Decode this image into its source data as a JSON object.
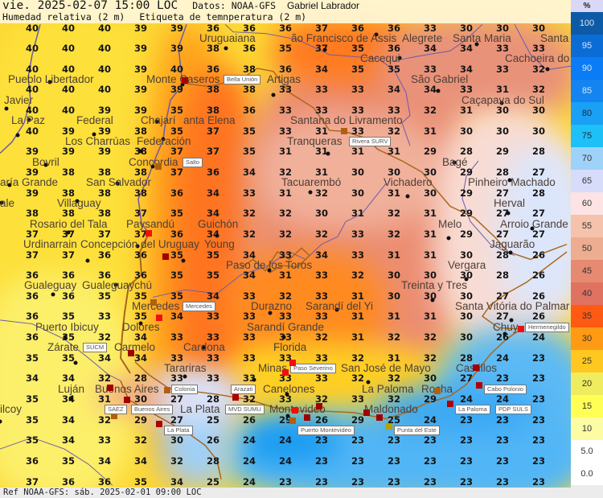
{
  "header": {
    "datetime": "vie. 2025-02-07 15:00 LOC",
    "source": "Datos: NOAA-GFS",
    "author": "Gabriel Labrador",
    "variable": "Humedad relativa (2 m)",
    "labels": "Etiqueta de temnperatura (2 m)"
  },
  "footer": {
    "reference": "Ref NOAA-GFS: sáb. 2025-02-01 09:00 LOC"
  },
  "legend": {
    "unit": "%",
    "items": [
      {
        "label": "100",
        "color": "#0d5aa7",
        "text": "#d8e6f6"
      },
      {
        "label": "95",
        "color": "#0c6cd6",
        "text": "#d8e6f6"
      },
      {
        "label": "90",
        "color": "#0a7cf5",
        "text": "#d8e6f6"
      },
      {
        "label": "85",
        "color": "#1384f0",
        "text": "#d8e6f6"
      },
      {
        "label": "80",
        "color": "#1aa0f5",
        "text": "#1d2a3a"
      },
      {
        "label": "75",
        "color": "#1ec0f8",
        "text": "#1d2a3a"
      },
      {
        "label": "70",
        "color": "#9fd2f8",
        "text": "#333"
      },
      {
        "label": "65",
        "color": "#d8dcfb",
        "text": "#333"
      },
      {
        "label": "60",
        "color": "#fde3e4",
        "text": "#333"
      },
      {
        "label": "55",
        "color": "#f5c2ab",
        "text": "#333"
      },
      {
        "label": "50",
        "color": "#edad90",
        "text": "#333"
      },
      {
        "label": "45",
        "color": "#e68a72",
        "text": "#333"
      },
      {
        "label": "40",
        "color": "#e07262",
        "text": "#333"
      },
      {
        "label": "35",
        "color": "#ff5a14",
        "text": "#333"
      },
      {
        "label": "30",
        "color": "#ff9a14",
        "text": "#333"
      },
      {
        "label": "25",
        "color": "#ffc820",
        "text": "#333"
      },
      {
        "label": "20",
        "color": "#f0ec60",
        "text": "#333"
      },
      {
        "label": "15",
        "color": "#ffff55",
        "text": "#333"
      },
      {
        "label": "10",
        "color": "#fcfca4",
        "text": "#333"
      },
      {
        "label": "5.0",
        "color": "#ffffff",
        "text": "#333"
      },
      {
        "label": "0.0",
        "color": "#ffffff",
        "text": "#333"
      }
    ]
  },
  "temperature_grid": [
    [
      40,
      40,
      40,
      39,
      39,
      36,
      36,
      36,
      37,
      36,
      36,
      33,
      30,
      30,
      30
    ],
    [
      40,
      40,
      40,
      39,
      39,
      38,
      36,
      35,
      37,
      35,
      36,
      34,
      34,
      33,
      33
    ],
    [
      40,
      40,
      40,
      39,
      40,
      36,
      38,
      36,
      34,
      35,
      35,
      33,
      34,
      33,
      32
    ],
    [
      40,
      40,
      40,
      39,
      39,
      38,
      38,
      33,
      33,
      33,
      34,
      34,
      33,
      31,
      32
    ],
    [
      40,
      40,
      39,
      39,
      35,
      38,
      36,
      33,
      33,
      33,
      33,
      32,
      31,
      30,
      30
    ],
    [
      40,
      39,
      39,
      38,
      35,
      37,
      35,
      33,
      31,
      33,
      32,
      31,
      30,
      30,
      30
    ],
    [
      39,
      39,
      39,
      38,
      37,
      37,
      35,
      31,
      31,
      31,
      31,
      29,
      28,
      29,
      28
    ],
    [
      39,
      38,
      38,
      38,
      37,
      36,
      34,
      32,
      31,
      30,
      30,
      30,
      29,
      28,
      27
    ],
    [
      39,
      38,
      38,
      38,
      36,
      34,
      33,
      31,
      32,
      30,
      31,
      30,
      29,
      27,
      28
    ],
    [
      38,
      38,
      38,
      37,
      35,
      34,
      32,
      32,
      30,
      31,
      32,
      31,
      29,
      27,
      27
    ],
    [
      37,
      37,
      37,
      37,
      36,
      34,
      32,
      32,
      32,
      33,
      32,
      31,
      29,
      27,
      27
    ],
    [
      37,
      37,
      36,
      36,
      35,
      35,
      34,
      33,
      34,
      33,
      31,
      31,
      30,
      28,
      26
    ],
    [
      36,
      36,
      36,
      36,
      35,
      35,
      34,
      31,
      33,
      32,
      30,
      30,
      30,
      28,
      26
    ],
    [
      36,
      36,
      35,
      35,
      35,
      34,
      33,
      32,
      33,
      31,
      30,
      30,
      30,
      27,
      26
    ],
    [
      36,
      35,
      33,
      35,
      34,
      33,
      33,
      33,
      33,
      31,
      31,
      31,
      30,
      27,
      26
    ],
    [
      36,
      35,
      32,
      34,
      33,
      33,
      33,
      33,
      32,
      31,
      32,
      32,
      30,
      26,
      24
    ],
    [
      35,
      35,
      34,
      34,
      33,
      33,
      33,
      33,
      33,
      32,
      31,
      32,
      28,
      24,
      23
    ],
    [
      34,
      34,
      32,
      28,
      33,
      33,
      33,
      33,
      33,
      32,
      32,
      30,
      27,
      23,
      23
    ],
    [
      35,
      34,
      31,
      30,
      27,
      28,
      32,
      33,
      32,
      33,
      32,
      29,
      24,
      24,
      23
    ],
    [
      35,
      34,
      32,
      29,
      27,
      25,
      26,
      29,
      26,
      29,
      25,
      24,
      23,
      23,
      23
    ],
    [
      35,
      34,
      33,
      32,
      30,
      26,
      24,
      24,
      23,
      23,
      23,
      23,
      23,
      23,
      23
    ],
    [
      36,
      35,
      34,
      34,
      32,
      28,
      24,
      24,
      23,
      23,
      23,
      23,
      23,
      23,
      23
    ],
    [
      37,
      36,
      36,
      35,
      34,
      25,
      24,
      23,
      23,
      23,
      23,
      23,
      23,
      23,
      23
    ]
  ],
  "cities": [
    "ão Francisco de Assis",
    "Santa Maria",
    "Santa",
    "Uruguaiana",
    "Alegrete",
    "Cacequi",
    "Cachoeira do",
    "Pueblo Libertador",
    "Monte Caseros",
    "São Gabriel",
    "Artigas",
    "Caçapava do Sul",
    "Javier",
    "La Paz",
    "Chajarí",
    "anta Elena",
    "Federal",
    "Federación",
    "Santana do Livramento",
    "Los Charrúas",
    "Tranqueras",
    "Bagé",
    "Bovril",
    "Concordia",
    "Pinheiro Machado",
    "aría Grande",
    "San Salvador",
    "Tacuarembó",
    "Vichadero",
    "ale",
    "Villaguay",
    "Herval",
    "Arroio Grande",
    "Rosario del Tala",
    "Paysandú",
    "Guichón",
    "Melo",
    "Concepción del Uruguay",
    "Jaguarão",
    "Urdinarrain",
    "Young",
    "Paso de los Toros",
    "Vergara",
    "Gualeguaychú",
    "Gualeguay",
    "Treinta y Tres",
    "Mercedes",
    "Durazno",
    "Sarandí del Yi",
    "Santa Vitória do Palmar",
    "Dolores",
    "Chuy",
    "Puerto Ibicuy",
    "Sarandí Grande",
    "Cardona",
    "Carmelo",
    "Zárate",
    "Florida",
    "Castillos",
    "Tarariras",
    "San José de Mayo",
    "Minas",
    "Rocha",
    "Canelones",
    "Luján",
    "Buenos Aires",
    "La Paloma",
    "Montevideo",
    "Maldonado",
    "ilcoy",
    "La Plata"
  ],
  "stations": [
    {
      "label": "Bella Unión",
      "color": "#b00000"
    },
    {
      "label": "Rivera SURV",
      "color": "#b06010"
    },
    {
      "label": "Salto",
      "color": "#b06010"
    },
    {
      "label": "Mercedes",
      "color": "#b06010"
    },
    {
      "label": "Hermenegildo",
      "color": "#ee1010"
    },
    {
      "label": "SUCM",
      "color": "#a00000"
    },
    {
      "label": "Paso Severino",
      "color": "#ee1010"
    },
    {
      "label": "Cabo Polonio",
      "color": "#b00000"
    },
    {
      "label": "Colonia",
      "color": "#b06010"
    },
    {
      "label": "Buenos Aires",
      "color": "#a00000"
    },
    {
      "label": "La Paloma",
      "color": "#b00000"
    },
    {
      "label": "Arazati",
      "color": "#b00000"
    },
    {
      "label": "MVD SUMU",
      "color": "#a00000"
    },
    {
      "label": "Puerto Montevideo",
      "color": "#b06010"
    },
    {
      "label": "PDP SULS",
      "color": "#a00000"
    },
    {
      "label": "Punta del Este",
      "color": "#b8a000"
    },
    {
      "label": "SAEZ",
      "color": "#b06010"
    },
    {
      "label": "La Plata",
      "color": "#b00000"
    }
  ]
}
